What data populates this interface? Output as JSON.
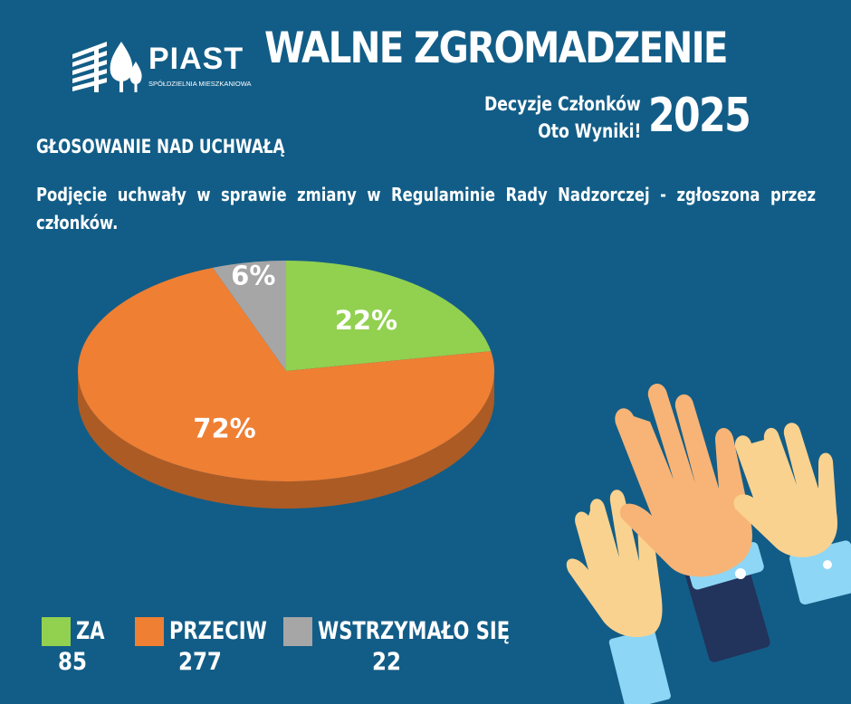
{
  "logo": {
    "name": "PIAST",
    "sub": "SPÓŁDZIELNIA MIESZKANIOWA"
  },
  "header": {
    "title": "WALNE ZGROMADZENIE",
    "subtitle_line1": "Decyzje Członków",
    "subtitle_line2": "Oto Wyniki!",
    "year": "2025"
  },
  "section_title": "GŁOSOWANIE NAD UCHWAŁĄ",
  "resolution_text": "Podjęcie uchwały w sprawie zmiany w Regulaminie Rady Nadzorczej - zgłoszona przez członków.",
  "legend": [
    {
      "label": "ZA",
      "count": "85",
      "color": "#92d050"
    },
    {
      "label": "PRZECIW",
      "count": "277",
      "color": "#ef7f33"
    },
    {
      "label": "WSTRZYMAŁO SIĘ",
      "count": "22",
      "color": "#a6a6a6"
    }
  ],
  "chart_data": {
    "type": "pie",
    "categories": [
      "ZA",
      "PRZECIW",
      "WSTRZYMAŁO SIĘ"
    ],
    "values": [
      85,
      277,
      22
    ],
    "data_labels": [
      "22%",
      "72%",
      "6%"
    ],
    "colors": [
      "#92d050",
      "#ef7f33",
      "#a6a6a6"
    ],
    "style": "3d"
  },
  "colors": {
    "background": "#125d87",
    "text": "#ffffff"
  },
  "illustration": "raised-hands"
}
